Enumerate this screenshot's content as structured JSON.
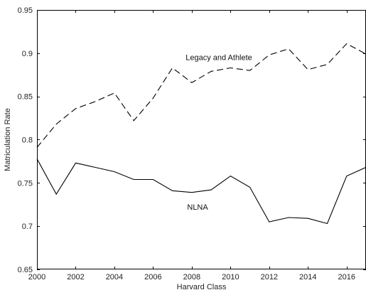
{
  "chart_data": {
    "type": "line",
    "title": "",
    "xlabel": "Harvard Class",
    "ylabel": "Matriculation Rate",
    "xlim": [
      2000,
      2017
    ],
    "ylim": [
      0.65,
      0.95
    ],
    "xticks": [
      2000,
      2002,
      2004,
      2006,
      2008,
      2010,
      2012,
      2014,
      2016
    ],
    "yticks": [
      0.65,
      0.7,
      0.75,
      0.8,
      0.85,
      0.9,
      0.95
    ],
    "xtick_labels": [
      "2000",
      "2002",
      "2004",
      "2006",
      "2008",
      "2010",
      "2012",
      "2014",
      "2016"
    ],
    "ytick_labels": [
      "0.65",
      "0.7",
      "0.75",
      "0.8",
      "0.85",
      "0.9",
      "0.95"
    ],
    "grid": false,
    "x": [
      2000,
      2001,
      2002,
      2003,
      2004,
      2005,
      2006,
      2007,
      2008,
      2009,
      2010,
      2011,
      2012,
      2013,
      2014,
      2015,
      2016,
      2017
    ],
    "series": [
      {
        "name": "Legacy and Athlete",
        "style": "dashed",
        "color": "#000000",
        "values": [
          0.791,
          0.818,
          0.836,
          0.844,
          0.854,
          0.822,
          0.848,
          0.883,
          0.866,
          0.879,
          0.883,
          0.88,
          0.898,
          0.905,
          0.881,
          0.887,
          0.911,
          0.899
        ]
      },
      {
        "name": "NLNA",
        "style": "solid",
        "color": "#000000",
        "values": [
          0.778,
          0.737,
          0.773,
          0.768,
          0.763,
          0.754,
          0.754,
          0.741,
          0.739,
          0.742,
          0.758,
          0.745,
          0.705,
          0.71,
          0.709,
          0.703,
          0.758,
          0.768
        ]
      }
    ],
    "annotations": [
      {
        "text": "Legacy and Athlete",
        "x": 2009.4,
        "y": 0.892
      },
      {
        "text": "NLNA",
        "x": 2008.3,
        "y": 0.719
      }
    ]
  }
}
